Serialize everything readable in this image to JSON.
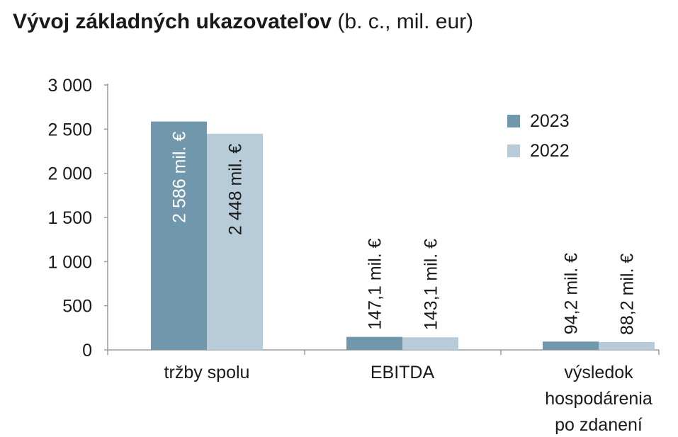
{
  "title": {
    "main": "Vývoj základných ukazovateľov",
    "sub": "(b. c., mil. eur)"
  },
  "colors": {
    "series_2023": "#7097ab",
    "series_2022": "#b7ccd8",
    "axis": "#9a9a9a",
    "text": "#1a1a1a"
  },
  "chart_data": {
    "type": "bar",
    "categories": [
      [
        "tržby spolu"
      ],
      [
        "EBITDA"
      ],
      [
        "výsledok",
        "hospodárenia",
        "po zdanení"
      ]
    ],
    "series": [
      {
        "name": "2023",
        "values": [
          2586,
          147.1,
          94.2
        ],
        "labels": [
          "2 586 mil. €",
          "147,1 mil. €",
          "94,2 mil. €"
        ]
      },
      {
        "name": "2022",
        "values": [
          2448,
          143.1,
          88.2
        ],
        "labels": [
          "2 448 mil. €",
          "143,1 mil. €",
          "88,2 mil. €"
        ]
      }
    ],
    "ylim": [
      0,
      3000
    ],
    "yticks": [
      0,
      500,
      1000,
      1500,
      2000,
      2500,
      3000
    ],
    "ytick_labels": [
      "0",
      "500",
      "1 000",
      "1 500",
      "2 000",
      "2 500",
      "3 000"
    ],
    "legend_position": "top-right",
    "grid": false
  }
}
